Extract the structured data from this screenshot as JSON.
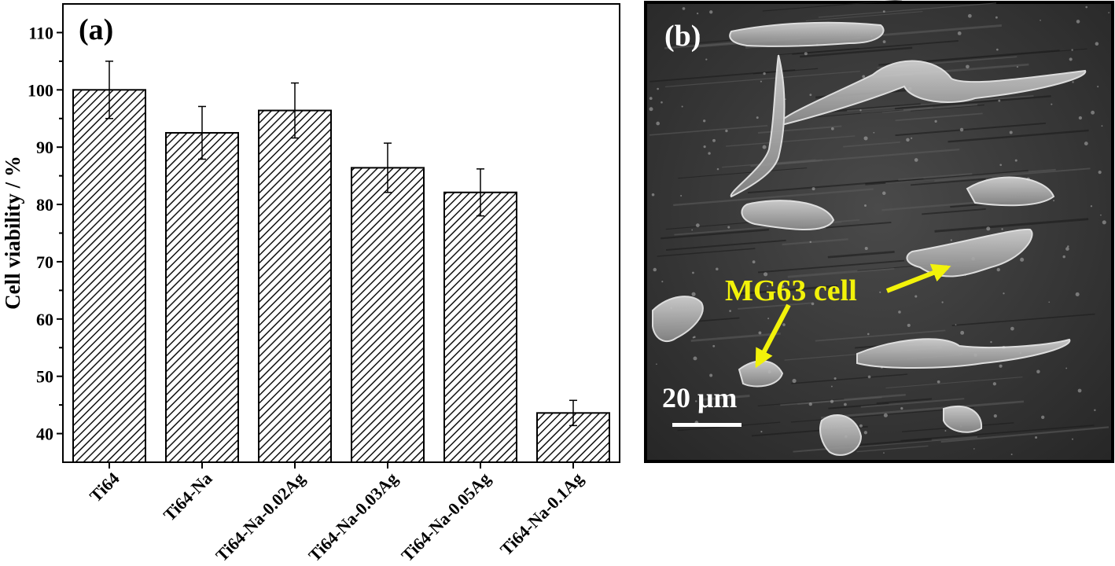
{
  "chart_data": {
    "type": "bar",
    "panel_label": "(a)",
    "ylabel": "Cell viability / %",
    "xlabel": "",
    "ylim": [
      35,
      115
    ],
    "yticks": [
      40,
      50,
      60,
      70,
      80,
      90,
      100,
      110
    ],
    "categories": [
      "Ti64",
      "Ti64-Na",
      "Ti64-Na-0.02Ag",
      "Ti64-Na-0.03Ag",
      "Ti64-Na-0.05Ag",
      "Ti64-Na-0.1Ag"
    ],
    "values": [
      100,
      92.5,
      96.4,
      86.4,
      82.1,
      43.6
    ],
    "errors": [
      5.0,
      4.6,
      4.8,
      4.3,
      4.1,
      2.2
    ],
    "bar_fill": "diagonal-hatch",
    "grid": false
  },
  "micrograph": {
    "panel_label": "(b)",
    "annotation": "MG63 cell",
    "annotation_color": "#f2f20a",
    "scale_bar_label": "20 μm"
  }
}
